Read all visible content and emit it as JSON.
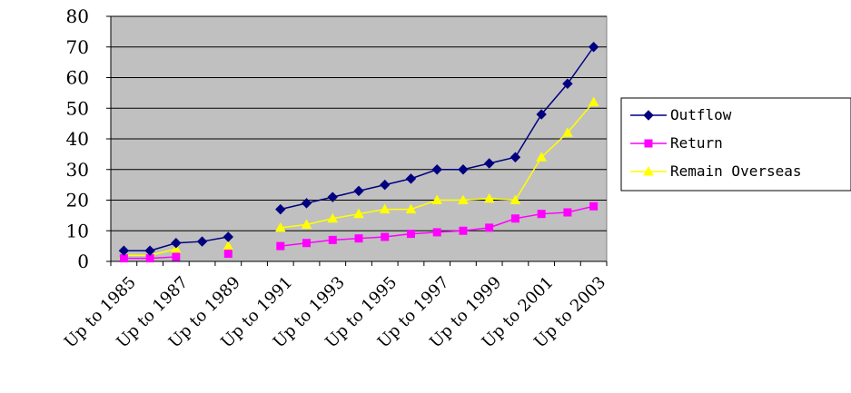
{
  "chart_data": {
    "type": "line",
    "x": [
      "1985",
      "1986",
      "1987",
      "1988",
      "1989",
      "1990",
      "1991",
      "1992",
      "1993",
      "1994",
      "1995",
      "1996",
      "1997",
      "1998",
      "1999",
      "2000",
      "2001",
      "2002",
      "2003"
    ],
    "x_tick_labels": [
      "Up to 1985",
      "Up to 1987",
      "Up to 1989",
      "Up to 1991",
      "Up to 1993",
      "Up to 1995",
      "Up to 1997",
      "Up to 1999",
      "Up to 2001",
      "Up to 2003"
    ],
    "series": [
      {
        "name": "Outflow",
        "color": "#000080",
        "marker": "diamond",
        "values": [
          3.5,
          3.5,
          6,
          6.5,
          8,
          null,
          17,
          19,
          21,
          23,
          25,
          27,
          30,
          30,
          32,
          34,
          48,
          58,
          70
        ]
      },
      {
        "name": "Return",
        "color": "#ff00ff",
        "marker": "square",
        "values": [
          1,
          1,
          1.5,
          null,
          2.5,
          null,
          5,
          6,
          7,
          7.5,
          8,
          9,
          9.5,
          10,
          11,
          14,
          15.5,
          16,
          18
        ]
      },
      {
        "name": "Remain Overseas",
        "color": "#ffff00",
        "marker": "triangle",
        "values": [
          2,
          2,
          4,
          null,
          5,
          null,
          11,
          12,
          14,
          15.5,
          17,
          17,
          20,
          20,
          20.5,
          20,
          34,
          42,
          52
        ]
      }
    ],
    "ylim": [
      0,
      80
    ],
    "yticks": [
      0,
      10,
      20,
      30,
      40,
      50,
      60,
      70,
      80
    ],
    "grid": true,
    "plot_background": "#c0c0c0",
    "legend_position": "right"
  }
}
